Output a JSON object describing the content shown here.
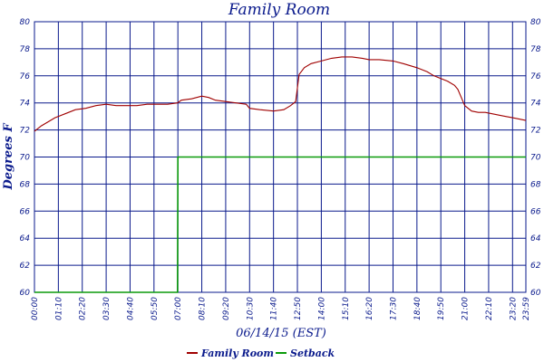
{
  "chart_data": {
    "type": "line",
    "title": "Family Room",
    "ylabel": "Degrees F",
    "xlabel": "06/14/15 (EST)",
    "ylim": [
      60,
      80
    ],
    "yticks": [
      60,
      62,
      64,
      66,
      68,
      70,
      72,
      74,
      76,
      78,
      80
    ],
    "xticks": [
      "00:00",
      "01:10",
      "02:20",
      "03:30",
      "04:40",
      "05:50",
      "07:00",
      "08:10",
      "09:20",
      "10:30",
      "11:40",
      "12:50",
      "14:00",
      "15:10",
      "16:20",
      "17:30",
      "18:40",
      "19:50",
      "21:00",
      "22:10",
      "23:20",
      "23:59"
    ],
    "grid": true,
    "legend_position": "bottom",
    "colors": {
      "grid": "#0a1a8c",
      "text": "#0a1a8c",
      "family_room": "#a00000",
      "setback": "#0a9a0a"
    },
    "series": [
      {
        "name": "Family Room",
        "x": [
          "00:00",
          "00:20",
          "00:40",
          "01:00",
          "01:30",
          "02:00",
          "02:30",
          "03:00",
          "03:30",
          "04:00",
          "04:30",
          "05:00",
          "05:30",
          "06:00",
          "06:30",
          "06:59",
          "07:10",
          "07:40",
          "08:10",
          "08:30",
          "08:50",
          "09:20",
          "09:50",
          "10:20",
          "10:30",
          "11:00",
          "11:40",
          "12:10",
          "12:30",
          "12:40",
          "12:45",
          "12:55",
          "13:10",
          "13:30",
          "14:00",
          "14:30",
          "15:00",
          "15:30",
          "16:00",
          "16:20",
          "16:50",
          "17:30",
          "18:00",
          "18:40",
          "19:10",
          "19:30",
          "19:50",
          "20:10",
          "20:30",
          "20:40",
          "21:00",
          "21:20",
          "21:40",
          "22:00",
          "22:20",
          "22:40",
          "23:00",
          "23:20",
          "23:40",
          "23:59"
        ],
        "values": [
          71.9,
          72.3,
          72.6,
          72.9,
          73.2,
          73.5,
          73.6,
          73.8,
          73.9,
          73.8,
          73.8,
          73.8,
          73.9,
          73.9,
          73.9,
          74.0,
          74.2,
          74.3,
          74.5,
          74.4,
          74.2,
          74.1,
          74.0,
          73.9,
          73.6,
          73.5,
          73.4,
          73.5,
          73.8,
          74.0,
          74.1,
          76.1,
          76.6,
          76.9,
          77.1,
          77.3,
          77.4,
          77.4,
          77.3,
          77.2,
          77.2,
          77.1,
          76.9,
          76.6,
          76.3,
          76.0,
          75.8,
          75.6,
          75.3,
          75.0,
          73.8,
          73.4,
          73.3,
          73.3,
          73.2,
          73.1,
          73.0,
          72.9,
          72.8,
          72.7
        ]
      },
      {
        "name": "Setback",
        "x": [
          "00:00",
          "06:59",
          "07:00",
          "23:59"
        ],
        "values": [
          60,
          60,
          70,
          70
        ]
      }
    ]
  }
}
